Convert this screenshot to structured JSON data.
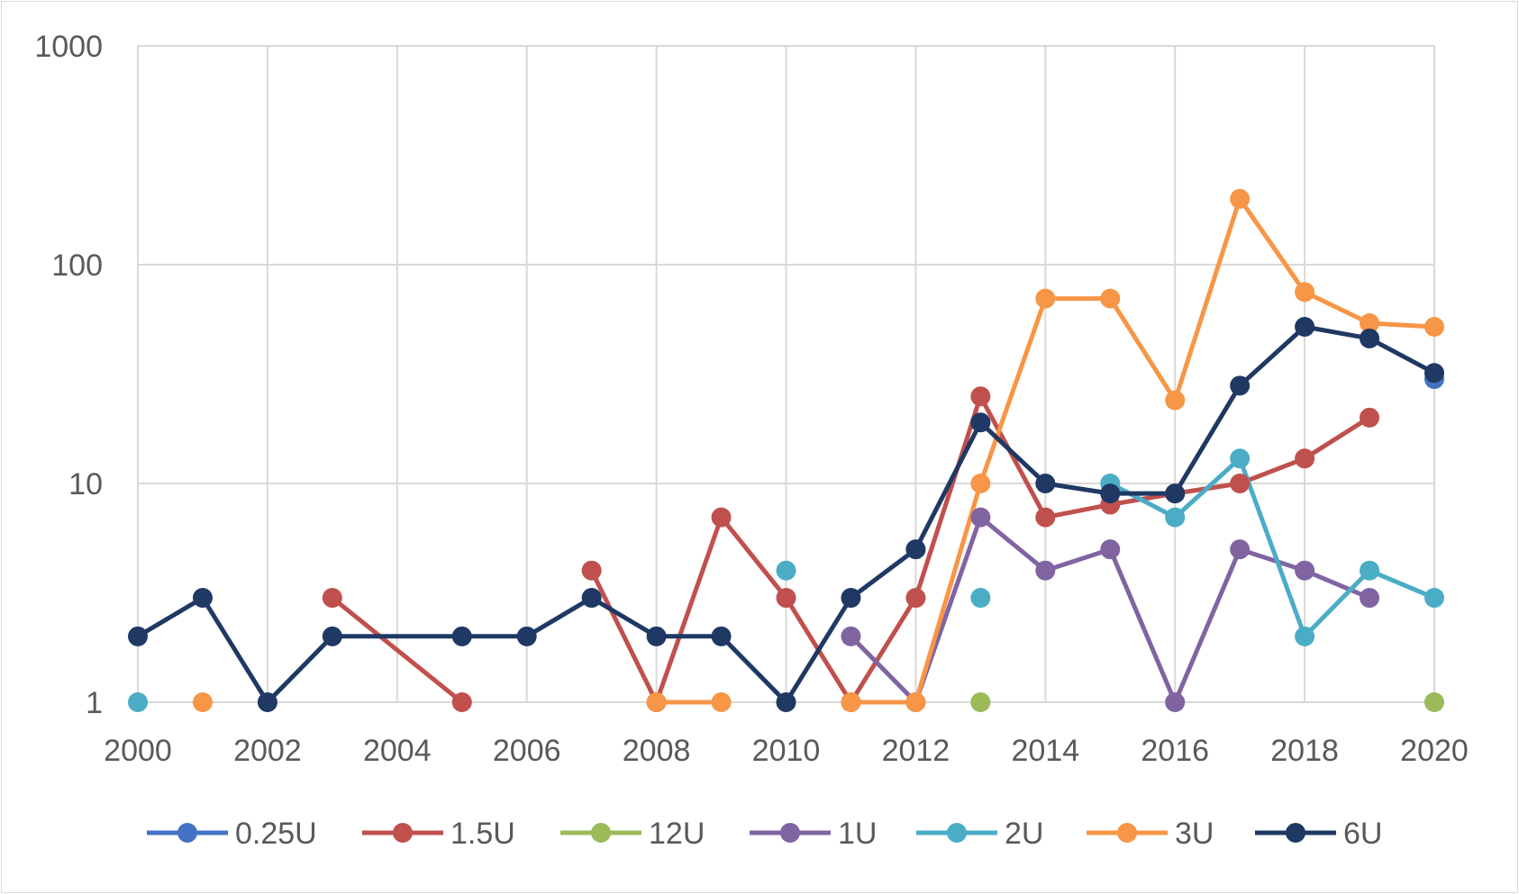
{
  "chart_data": {
    "type": "line",
    "title": "",
    "xlabel": "",
    "ylabel": "",
    "y_scale": "log",
    "xlim": [
      2000,
      2020
    ],
    "ylim": [
      1,
      1000
    ],
    "grid": true,
    "legend_position": "bottom",
    "x_tick_labels": [
      "2000",
      "2002",
      "2004",
      "2006",
      "2008",
      "2010",
      "2012",
      "2014",
      "2016",
      "2018",
      "2020"
    ],
    "y_tick_labels": [
      "1",
      "10",
      "100",
      "1000"
    ],
    "x_ticks": [
      2000,
      2002,
      2004,
      2006,
      2008,
      2010,
      2012,
      2014,
      2016,
      2018,
      2020
    ],
    "y_ticks": [
      1,
      10,
      100,
      1000
    ],
    "series": [
      {
        "name": "0.25U",
        "color": "#4472C4",
        "points": [
          [
            2020,
            30
          ]
        ]
      },
      {
        "name": "1.5U",
        "color": "#C0504D",
        "points": [
          [
            2003,
            3
          ],
          [
            2005,
            1
          ],
          [
            2007,
            4
          ],
          [
            2008,
            1
          ],
          [
            2009,
            7
          ],
          [
            2010,
            3
          ],
          [
            2011,
            1
          ],
          [
            2012,
            3
          ],
          [
            2013,
            25
          ],
          [
            2014,
            7
          ],
          [
            2015,
            8
          ],
          [
            2016,
            9
          ],
          [
            2017,
            10
          ],
          [
            2018,
            13
          ],
          [
            2019,
            20
          ]
        ]
      },
      {
        "name": "12U",
        "color": "#9BBB59",
        "points": [
          [
            2013,
            1
          ],
          [
            2020,
            1
          ]
        ]
      },
      {
        "name": "1U",
        "color": "#8064A2",
        "points": [
          [
            2011,
            2
          ],
          [
            2012,
            1
          ],
          [
            2013,
            7
          ],
          [
            2014,
            4
          ],
          [
            2015,
            5
          ],
          [
            2016,
            1
          ],
          [
            2017,
            5
          ],
          [
            2018,
            4
          ],
          [
            2019,
            3
          ]
        ]
      },
      {
        "name": "2U",
        "color": "#4BACC6",
        "points": [
          [
            2000,
            1
          ],
          [
            2010,
            4
          ],
          [
            2013,
            3
          ],
          [
            2015,
            10
          ],
          [
            2016,
            7
          ],
          [
            2017,
            13
          ],
          [
            2018,
            2
          ],
          [
            2019,
            4
          ],
          [
            2020,
            3
          ]
        ]
      },
      {
        "name": "3U",
        "color": "#F79646",
        "points": [
          [
            2001,
            1
          ],
          [
            2008,
            1
          ],
          [
            2009,
            1
          ],
          [
            2011,
            1
          ],
          [
            2012,
            1
          ],
          [
            2013,
            10
          ],
          [
            2014,
            70
          ],
          [
            2015,
            70
          ],
          [
            2016,
            24
          ],
          [
            2017,
            200
          ],
          [
            2018,
            75
          ],
          [
            2019,
            54
          ],
          [
            2020,
            52
          ]
        ]
      },
      {
        "name": "6U",
        "color": "#1F3864",
        "points": [
          [
            2000,
            2
          ],
          [
            2001,
            3
          ],
          [
            2002,
            1
          ],
          [
            2003,
            2
          ],
          [
            2005,
            2
          ],
          [
            2006,
            2
          ],
          [
            2007,
            3
          ],
          [
            2008,
            2
          ],
          [
            2009,
            2
          ],
          [
            2010,
            1
          ],
          [
            2011,
            3
          ],
          [
            2012,
            5
          ],
          [
            2013,
            19
          ],
          [
            2014,
            10
          ],
          [
            2015,
            9
          ],
          [
            2016,
            9
          ],
          [
            2017,
            28
          ],
          [
            2018,
            52
          ],
          [
            2019,
            46
          ],
          [
            2020,
            32
          ]
        ]
      }
    ]
  }
}
